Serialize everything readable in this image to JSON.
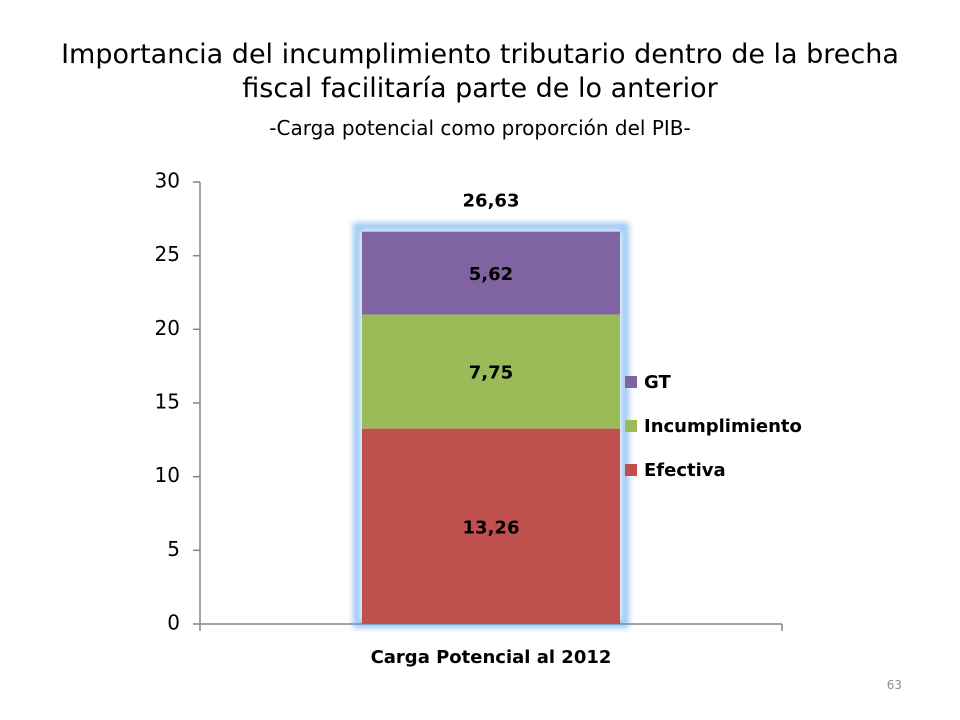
{
  "slide": {
    "title_line1": "Importancia del incumplimiento tributario dentro de la brecha",
    "title_line2": "fiscal facilitaría parte de lo anterior",
    "subtitle": "-Carga potencial como proporción del PIB-",
    "page_number": "63"
  },
  "chart_data": {
    "type": "bar",
    "stacked": true,
    "categories": [
      "Carga Potencial al 2012"
    ],
    "series": [
      {
        "name": "Efectiva",
        "values": [
          13.26
        ],
        "label": "13,26",
        "color": "#c0504d"
      },
      {
        "name": "Incumplimiento",
        "values": [
          7.75
        ],
        "label": "7,75",
        "color": "#9bbb59"
      },
      {
        "name": "GT",
        "values": [
          5.62
        ],
        "label": "5,62",
        "color": "#8064a2"
      }
    ],
    "total": {
      "value": 26.63,
      "label": "26,63"
    },
    "ylim": [
      0,
      30
    ],
    "yticks": [
      "0",
      "5",
      "10",
      "15",
      "20",
      "25",
      "30"
    ],
    "legend_position": "right",
    "legend_order": [
      "GT",
      "Incumplimiento",
      "Efectiva"
    ],
    "grid": false
  }
}
